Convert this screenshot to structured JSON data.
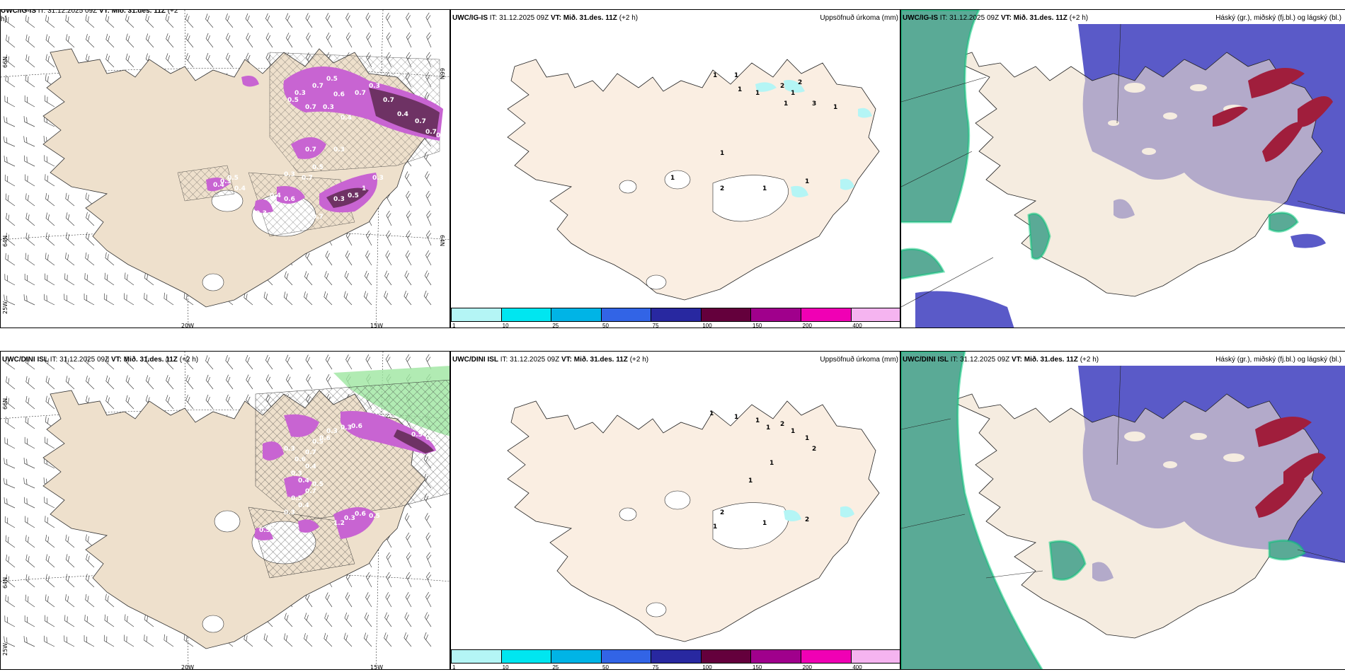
{
  "rows": [
    {
      "model": "UWC/IG-IS",
      "left_header_model": "UWC/IG-IS",
      "it_label": "IT:",
      "it_value": "31.12.2025 09Z",
      "vt_label": "VT:",
      "vt_value": "Mið. 31.des. 11Z",
      "lead": "(+2",
      "lead_wrap": "h)",
      "lead_full": "(+2 h)",
      "precip_title": "Uppsöfnuð úrkoma (mm)",
      "cloud_title": "Háský (gr.), miðský (fj.bl.) og lágský (bl.)",
      "left_labels": [
        "0.5",
        "0.3",
        "0.7",
        "0.6",
        "0.7",
        "0.5",
        "0.3",
        "0.4",
        "0.7",
        "0.3",
        "0.7",
        "0.4",
        "0.7",
        "0.5",
        "0.7",
        "0.3",
        "0.7",
        "0.5",
        "0.7",
        "0.3",
        "0.4",
        "0.5",
        "0.4",
        "0.6",
        "0.3",
        "0.5",
        "1",
        "0.3",
        "0.3",
        "0.4",
        "0.7",
        "0.3"
      ],
      "precip_labels": [
        "1",
        "1",
        "1",
        "1",
        "2",
        "1",
        "1",
        "3",
        "2",
        "1",
        "1",
        "1",
        "2",
        "1",
        "1"
      ]
    },
    {
      "model": "UWC/DINI ISL",
      "left_header_model": "UWC/DINI ISL",
      "it_label": "IT:",
      "it_value": "31.12.2025 09Z",
      "vt_label": "VT:",
      "vt_value": "Mið. 31.des. 11Z",
      "lead": "(+2 h)",
      "lead_wrap": "",
      "lead_full": "(+2 h)",
      "precip_title": "Uppsöfnuð úrkoma (mm)",
      "cloud_title": "Háský (gr.), miðský (fj.bl.) og lágský (bl.)",
      "left_labels": [
        "0.3",
        "0.6",
        "0.3",
        "0.6",
        "0.5",
        "0.7",
        "0.3",
        "0.6",
        "0.4",
        "0.3",
        "0.4",
        "0.5",
        "0.7",
        "0.5",
        "0.4",
        "0.3",
        "0.6",
        "0.5",
        "1.2",
        "0.3",
        "0.6",
        "0.5",
        "0.5",
        "0.5"
      ],
      "precip_labels": [
        "1",
        "1",
        "1",
        "1",
        "2",
        "1",
        "1",
        "2",
        "1",
        "1",
        "2",
        "1",
        "1",
        "2"
      ]
    }
  ],
  "axis_labels": {
    "lat66": "66N",
    "lat64": "64N",
    "lon25": "25W",
    "lon20": "20W",
    "lon15": "15W",
    "east66": "66N",
    "east64": "64N"
  },
  "colorbar": {
    "ticks": [
      "1",
      "10",
      "25",
      "50",
      "75",
      "100",
      "150",
      "200",
      "400"
    ],
    "colors": [
      "#b4f5f5",
      "#00e6f0",
      "#00b4e6",
      "#3264e6",
      "#2828a0",
      "#64003c",
      "#a0008c",
      "#f000b4",
      "#f5b4f0"
    ]
  },
  "colors": {
    "land": "#eee0cc",
    "land_light": "#faeee2",
    "precip_magenta": "#c864d2",
    "precip_dark": "#6e3264",
    "cloud_high": "#5a5ac8",
    "cloud_low": "#5aaa96",
    "cloud_mid": "#a01e3c"
  }
}
